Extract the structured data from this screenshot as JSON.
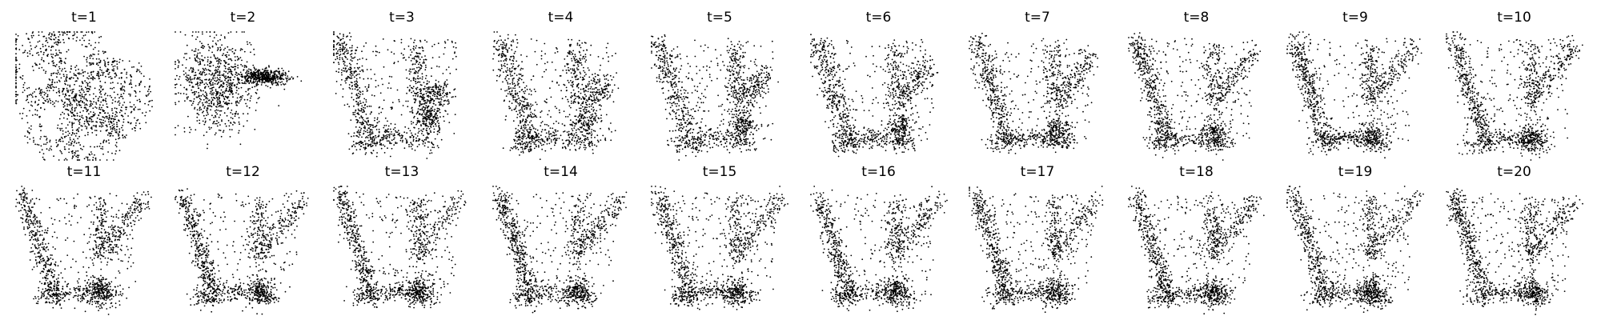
{
  "chart_data": {
    "type": "scatter",
    "description_axes": "no axes shown",
    "marker_color": "#000000",
    "panels": [
      {
        "title": "t=1",
        "step": 1
      },
      {
        "title": "t=2",
        "step": 2
      },
      {
        "title": "t=3",
        "step": 3
      },
      {
        "title": "t=4",
        "step": 4
      },
      {
        "title": "t=5",
        "step": 5
      },
      {
        "title": "t=6",
        "step": 6
      },
      {
        "title": "t=7",
        "step": 7
      },
      {
        "title": "t=8",
        "step": 8
      },
      {
        "title": "t=9",
        "step": 9
      },
      {
        "title": "t=10",
        "step": 10
      },
      {
        "title": "t=11",
        "step": 11
      },
      {
        "title": "t=12",
        "step": 12
      },
      {
        "title": "t=13",
        "step": 13
      },
      {
        "title": "t=14",
        "step": 14
      },
      {
        "title": "t=15",
        "step": 15
      },
      {
        "title": "t=16",
        "step": 16
      },
      {
        "title": "t=17",
        "step": 17
      },
      {
        "title": "t=18",
        "step": 18
      },
      {
        "title": "t=19",
        "step": 19
      },
      {
        "title": "t=20",
        "step": 20
      }
    ]
  }
}
